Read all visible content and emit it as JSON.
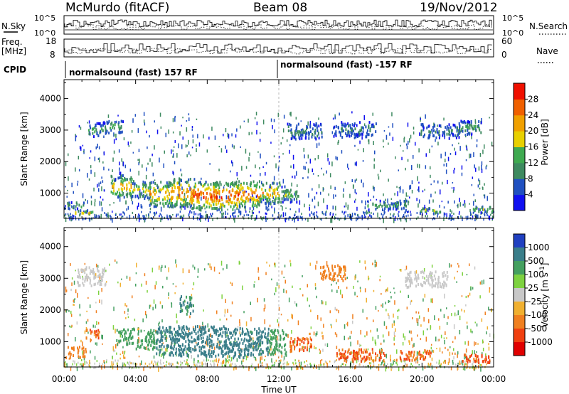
{
  "header": {
    "station": "McMurdo (fitACF)",
    "beam": "Beam 08",
    "date": "19/Nov/2012"
  },
  "top_labels": {
    "nsky": "N.Sky",
    "nsky_hi": "10^5",
    "nsky_lo": "10^0",
    "nsearch": "N.Search",
    "nsearch_hi": "10^5",
    "nsearch_lo": "10^0",
    "freq": "Freq.",
    "freq_unit": "[MHz]",
    "freq_hi": "18",
    "freq_lo": "8",
    "nave": "Nave",
    "nave_hi": "60",
    "nave_lo": "0",
    "cpid": "CPID",
    "cpid_1": "normalsound (fast) 157 RF",
    "cpid_2": "normalsound (fast) -157 RF"
  },
  "chart_data": [
    {
      "type": "heatmap",
      "panel": "power",
      "ylabel": "Slant Range [km]",
      "xlabel": "Time UT",
      "xlim": [
        0,
        24
      ],
      "ylim": [
        200,
        4600
      ],
      "x_ticks": [
        "00:00",
        "04:00",
        "08:00",
        "12:00",
        "16:00",
        "20:00",
        "00:00"
      ],
      "y_ticks": [
        "1000",
        "2000",
        "3000",
        "4000"
      ],
      "colorbar_label": "Power [dB]",
      "colorbar_ticks": [
        "4",
        "8",
        "12",
        "16",
        "20",
        "24",
        "28"
      ],
      "colorbar_colors": [
        "#1010f0",
        "#2050c0",
        "#3e8a60",
        "#3faa50",
        "#e8d000",
        "#f0a000",
        "#f06000",
        "#f01000"
      ],
      "features": [
        {
          "t": 0.3,
          "r": 650,
          "w": 1.6,
          "h": 220,
          "v": 14
        },
        {
          "t": 1.1,
          "r": 420,
          "w": 1.2,
          "h": 150,
          "v": 20
        },
        {
          "t": 1.8,
          "r": 3050,
          "w": 1.0,
          "h": 450,
          "v": 12
        },
        {
          "t": 2.8,
          "r": 3150,
          "w": 1.0,
          "h": 400,
          "v": 14
        },
        {
          "t": 3.2,
          "r": 1250,
          "w": 1.2,
          "h": 700,
          "v": 22
        },
        {
          "t": 4.3,
          "r": 1150,
          "w": 1.0,
          "h": 550,
          "v": 18
        },
        {
          "t": 5.4,
          "r": 1000,
          "w": 1.3,
          "h": 800,
          "v": 23
        },
        {
          "t": 6.6,
          "r": 1050,
          "w": 1.3,
          "h": 900,
          "v": 26
        },
        {
          "t": 7.8,
          "r": 950,
          "w": 1.4,
          "h": 900,
          "v": 28
        },
        {
          "t": 9.0,
          "r": 950,
          "w": 1.4,
          "h": 900,
          "v": 29
        },
        {
          "t": 10.2,
          "r": 1000,
          "w": 1.4,
          "h": 850,
          "v": 27
        },
        {
          "t": 11.5,
          "r": 1050,
          "w": 1.2,
          "h": 700,
          "v": 22
        },
        {
          "t": 12.6,
          "r": 1000,
          "w": 1.0,
          "h": 500,
          "v": 15
        },
        {
          "t": 13.4,
          "r": 3000,
          "w": 2.0,
          "h": 500,
          "v": 10
        },
        {
          "t": 16.2,
          "r": 3050,
          "w": 2.4,
          "h": 500,
          "v": 9
        },
        {
          "t": 18.0,
          "r": 650,
          "w": 2.2,
          "h": 300,
          "v": 12
        },
        {
          "t": 20.4,
          "r": 480,
          "w": 1.2,
          "h": 180,
          "v": 18
        },
        {
          "t": 21.0,
          "r": 3000,
          "w": 2.2,
          "h": 450,
          "v": 10
        },
        {
          "t": 22.6,
          "r": 3100,
          "w": 1.4,
          "h": 450,
          "v": 12
        },
        {
          "t": 23.3,
          "r": 520,
          "w": 1.2,
          "h": 200,
          "v": 16
        }
      ]
    },
    {
      "type": "heatmap",
      "panel": "velocity",
      "ylabel": "Slant Range [km]",
      "xlabel": "Time UT",
      "xlim": [
        0,
        24
      ],
      "ylim": [
        200,
        4600
      ],
      "x_ticks": [
        "00:00",
        "04:00",
        "08:00",
        "12:00",
        "16:00",
        "20:00",
        "00:00"
      ],
      "y_ticks": [
        "1000",
        "2000",
        "3000",
        "4000"
      ],
      "colorbar_label": "Velocity [m s-1]",
      "colorbar_ticks": [
        "1000",
        "500",
        "100",
        "25",
        "-25",
        "-100",
        "-500",
        "-1000"
      ],
      "colorbar_colors": [
        "#2040c0",
        "#3a7e8a",
        "#44a060",
        "#7ed240",
        "#c8c8c8",
        "#f0b030",
        "#f08020",
        "#f04010",
        "#e00000"
      ],
      "features": [
        {
          "t": 0.4,
          "r": 700,
          "w": 1.6,
          "h": 350,
          "v": -100
        },
        {
          "t": 1.6,
          "r": 1300,
          "w": 0.8,
          "h": 300,
          "v": -300
        },
        {
          "t": 1.5,
          "r": 3100,
          "w": 1.6,
          "h": 600,
          "v": 0
        },
        {
          "t": 3.4,
          "r": 1200,
          "w": 1.0,
          "h": 500,
          "v": 120
        },
        {
          "t": 4.6,
          "r": 1100,
          "w": 1.2,
          "h": 600,
          "v": 200
        },
        {
          "t": 5.8,
          "r": 1050,
          "w": 1.4,
          "h": 900,
          "v": 400
        },
        {
          "t": 7.0,
          "r": 1050,
          "w": 1.4,
          "h": 950,
          "v": 450
        },
        {
          "t": 8.3,
          "r": 1050,
          "w": 1.4,
          "h": 950,
          "v": 450
        },
        {
          "t": 9.6,
          "r": 1000,
          "w": 1.4,
          "h": 950,
          "v": 420
        },
        {
          "t": 10.8,
          "r": 1050,
          "w": 1.2,
          "h": 900,
          "v": 380
        },
        {
          "t": 11.9,
          "r": 1000,
          "w": 1.0,
          "h": 800,
          "v": 150
        },
        {
          "t": 13.2,
          "r": 950,
          "w": 1.2,
          "h": 450,
          "v": -300
        },
        {
          "t": 16.5,
          "r": 600,
          "w": 2.8,
          "h": 400,
          "v": -300
        },
        {
          "t": 19.5,
          "r": 600,
          "w": 2.0,
          "h": 300,
          "v": -300
        },
        {
          "t": 15.0,
          "r": 3200,
          "w": 1.4,
          "h": 500,
          "v": -200
        },
        {
          "t": 20.2,
          "r": 3000,
          "w": 2.4,
          "h": 500,
          "v": 0
        },
        {
          "t": 23.0,
          "r": 500,
          "w": 1.6,
          "h": 250,
          "v": -300
        },
        {
          "t": 6.8,
          "r": 2200,
          "w": 0.8,
          "h": 600,
          "v": 300
        }
      ]
    }
  ],
  "velocity_unit_sup": "-1"
}
